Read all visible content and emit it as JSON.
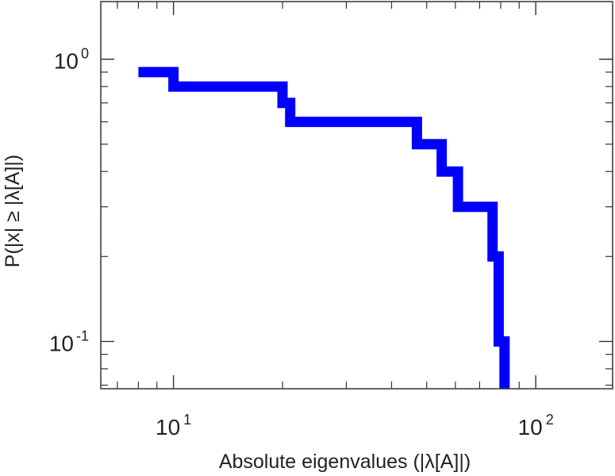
{
  "chart_data": {
    "type": "line",
    "step": true,
    "xscale": "log",
    "yscale": "log",
    "xlim": [
      6.3,
      163
    ],
    "ylim": [
      0.068,
      1.6
    ],
    "xlabel": "Absolute eigenvalues (|λ[A]|)",
    "ylabel": "P(|x| ≥ |λ[A]|)",
    "grid": false,
    "legend": "none",
    "series_color": "#0000ff",
    "x_major_ticks": [
      {
        "value": 10,
        "base": "10",
        "exp": "1"
      },
      {
        "value": 100,
        "base": "10",
        "exp": "2"
      }
    ],
    "y_major_ticks": [
      {
        "value": 1,
        "base": "10",
        "exp": "0"
      },
      {
        "value": 0.1,
        "base": "10",
        "exp": "-1"
      }
    ],
    "points": [
      [
        8,
        0.9
      ],
      [
        10,
        0.9
      ],
      [
        10,
        0.8
      ],
      [
        20,
        0.8
      ],
      [
        20,
        0.7
      ],
      [
        21,
        0.7
      ],
      [
        21,
        0.6
      ],
      [
        47,
        0.6
      ],
      [
        47,
        0.5
      ],
      [
        55,
        0.5
      ],
      [
        55,
        0.4
      ],
      [
        61,
        0.4
      ],
      [
        61,
        0.3
      ],
      [
        76,
        0.3
      ],
      [
        76,
        0.2
      ],
      [
        79,
        0.2
      ],
      [
        79,
        0.1
      ],
      [
        82,
        0.1
      ],
      [
        82,
        0.068
      ]
    ]
  }
}
